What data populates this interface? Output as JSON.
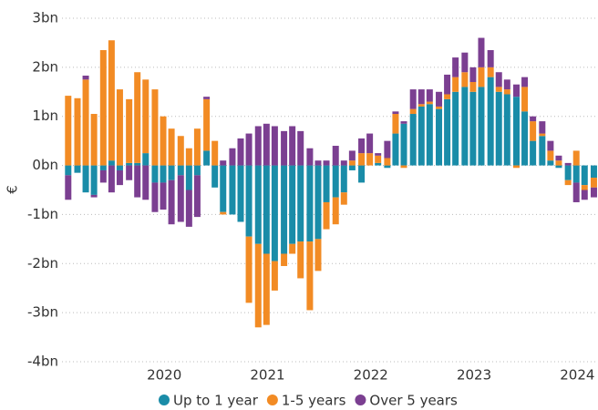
{
  "chart_data": {
    "type": "stacked_bar",
    "y_label": "€",
    "x": [
      2019.07,
      2019.16,
      2019.24,
      2019.32,
      2019.41,
      2019.49,
      2019.57,
      2019.66,
      2019.74,
      2019.82,
      2019.91,
      2019.99,
      2020.07,
      2020.16,
      2020.24,
      2020.32,
      2020.41,
      2020.49,
      2020.57,
      2020.66,
      2020.74,
      2020.82,
      2020.91,
      2020.99,
      2021.07,
      2021.16,
      2021.24,
      2021.32,
      2021.41,
      2021.49,
      2021.57,
      2021.66,
      2021.74,
      2021.82,
      2021.91,
      2021.99,
      2022.07,
      2022.16,
      2022.24,
      2022.32,
      2022.41,
      2022.49,
      2022.57,
      2022.66,
      2022.74,
      2022.82,
      2022.91,
      2022.99,
      2023.07,
      2023.16,
      2023.24,
      2023.32,
      2023.41,
      2023.49,
      2023.57,
      2023.66,
      2023.74,
      2023.82,
      2023.91,
      2023.99,
      2024.07,
      2024.16
    ],
    "series": [
      {
        "name": "Up to 1 year",
        "color": "#1a8ca8",
        "values": [
          -0.2,
          -0.15,
          -0.55,
          -0.6,
          -0.1,
          0.1,
          -0.1,
          0.05,
          0.05,
          0.25,
          -0.35,
          -0.35,
          -0.3,
          -0.2,
          -0.5,
          -0.2,
          0.3,
          -0.45,
          -0.95,
          -1.0,
          -1.15,
          -1.45,
          -1.6,
          -1.8,
          -1.95,
          -1.8,
          -1.6,
          -1.55,
          -1.55,
          -1.5,
          -0.75,
          -0.65,
          -0.55,
          -0.1,
          -0.35,
          0.0,
          0.05,
          -0.05,
          0.65,
          0.85,
          1.05,
          1.2,
          1.25,
          1.15,
          1.35,
          1.5,
          1.6,
          1.5,
          1.6,
          1.8,
          1.5,
          1.45,
          1.4,
          1.1,
          0.5,
          0.6,
          0.1,
          -0.05,
          -0.3,
          -0.35,
          -0.4,
          -0.25
        ]
      },
      {
        "name": "1-5 years",
        "color": "#f28b24",
        "values": [
          1.42,
          1.37,
          1.75,
          1.05,
          2.35,
          2.45,
          1.55,
          1.3,
          1.85,
          1.5,
          1.55,
          1.0,
          0.75,
          0.6,
          0.35,
          0.75,
          1.05,
          0.5,
          -0.05,
          0.0,
          0.0,
          -1.35,
          -1.7,
          -1.45,
          -0.6,
          -0.25,
          -0.2,
          -0.75,
          -1.4,
          -0.65,
          -0.55,
          -0.55,
          -0.25,
          0.1,
          0.25,
          0.25,
          0.15,
          0.15,
          0.4,
          -0.05,
          0.1,
          0.05,
          0.05,
          0.05,
          0.1,
          0.3,
          0.3,
          0.2,
          0.4,
          0.2,
          0.1,
          0.1,
          -0.05,
          0.5,
          0.4,
          0.05,
          0.2,
          0.1,
          -0.1,
          0.3,
          -0.1,
          -0.2
        ]
      },
      {
        "name": "Over 5 years",
        "color": "#7b3f91",
        "values": [
          -0.5,
          0.0,
          0.08,
          -0.05,
          -0.25,
          -0.55,
          -0.3,
          -0.3,
          -0.65,
          -0.7,
          -0.6,
          -0.55,
          -0.9,
          -0.95,
          -0.75,
          -0.85,
          0.05,
          0.0,
          0.1,
          0.35,
          0.55,
          0.65,
          0.8,
          0.85,
          0.8,
          0.7,
          0.8,
          0.7,
          0.35,
          0.1,
          0.1,
          0.4,
          0.1,
          0.2,
          0.3,
          0.4,
          0.05,
          0.35,
          0.05,
          0.05,
          0.4,
          0.3,
          0.25,
          0.3,
          0.4,
          0.4,
          0.4,
          0.3,
          0.6,
          0.35,
          0.3,
          0.2,
          0.25,
          0.2,
          0.1,
          0.25,
          0.2,
          0.1,
          0.05,
          -0.4,
          -0.2,
          -0.2
        ]
      }
    ],
    "xlim": [
      2019.01,
      2024.2
    ],
    "xticks": [
      2020,
      2021,
      2022,
      2023,
      2024
    ],
    "ylim": [
      -4,
      3
    ],
    "yticks": [
      {
        "value": -4,
        "label": "-4bn"
      },
      {
        "value": -3,
        "label": "-3bn"
      },
      {
        "value": -2,
        "label": "-2bn"
      },
      {
        "value": -1,
        "label": "-1bn"
      },
      {
        "value": 0,
        "label": "0bn"
      },
      {
        "value": 1,
        "label": "1bn"
      },
      {
        "value": 2,
        "label": "2bn"
      },
      {
        "value": 3,
        "label": "3bn"
      }
    ],
    "grid": true
  }
}
